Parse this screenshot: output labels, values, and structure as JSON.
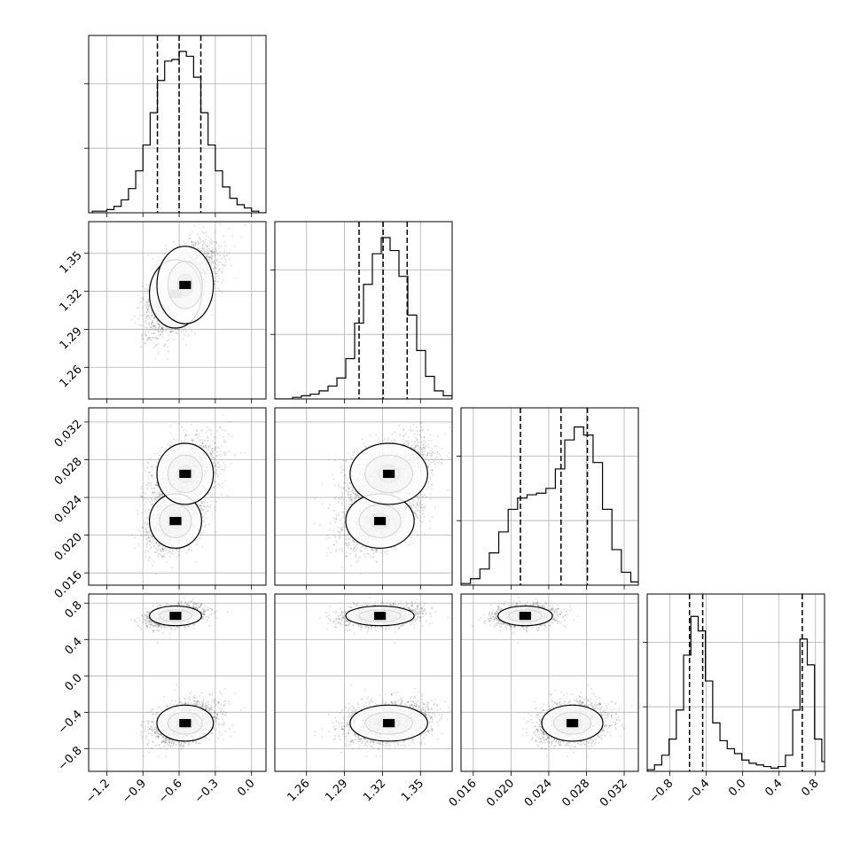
{
  "chart_data": {
    "type": "corner",
    "parameters": [
      {
        "range": [
          -1.35,
          0.12
        ],
        "ticks": [
          -1.2,
          -0.9,
          -0.6,
          -0.3,
          0.0
        ],
        "tick_labels": [
          "−1.2",
          "−0.9",
          "−0.6",
          "−0.3",
          "0.0"
        ],
        "quantiles": [
          -0.78,
          -0.6,
          -0.42
        ],
        "hist": {
          "bins": [
            -1.32,
            -1.26,
            -1.2,
            -1.14,
            -1.08,
            -1.02,
            -0.96,
            -0.9,
            -0.84,
            -0.78,
            -0.72,
            -0.66,
            -0.6,
            -0.54,
            -0.48,
            -0.42,
            -0.36,
            -0.3,
            -0.24,
            -0.18,
            -0.12,
            -0.06,
            0.0,
            0.06
          ],
          "counts": [
            0.01,
            0.01,
            0.02,
            0.04,
            0.08,
            0.15,
            0.26,
            0.42,
            0.62,
            0.82,
            0.94,
            0.95,
            1.0,
            0.97,
            0.84,
            0.62,
            0.42,
            0.26,
            0.16,
            0.09,
            0.05,
            0.03,
            0.01,
            0.0
          ]
        }
      },
      {
        "range": [
          1.235,
          1.375
        ],
        "ticks": [
          1.26,
          1.29,
          1.32,
          1.35
        ],
        "tick_labels": [
          "1.26",
          "1.29",
          "1.32",
          "1.35"
        ],
        "quantiles": [
          1.3015,
          1.3205,
          1.3395
        ],
        "hist": {
          "bins": [
            1.235,
            1.242,
            1.249,
            1.256,
            1.263,
            1.27,
            1.277,
            1.284,
            1.291,
            1.298,
            1.305,
            1.312,
            1.319,
            1.326,
            1.333,
            1.34,
            1.347,
            1.354,
            1.361,
            1.368
          ],
          "counts": [
            0.0,
            0.0,
            0.01,
            0.02,
            0.03,
            0.05,
            0.08,
            0.13,
            0.25,
            0.47,
            0.71,
            0.9,
            1.0,
            0.92,
            0.76,
            0.52,
            0.3,
            0.14,
            0.05,
            0.02
          ]
        }
      },
      {
        "range": [
          0.0147,
          0.0335
        ],
        "ticks": [
          0.016,
          0.02,
          0.024,
          0.028,
          0.032
        ],
        "tick_labels": [
          "0.016",
          "0.020",
          "0.024",
          "0.028",
          "0.032"
        ],
        "quantiles": [
          0.021,
          0.0253,
          0.0281
        ],
        "hist": {
          "bins": [
            0.0147,
            0.0157,
            0.0167,
            0.0177,
            0.0187,
            0.0197,
            0.0207,
            0.0217,
            0.0227,
            0.0237,
            0.0247,
            0.0257,
            0.0267,
            0.0277,
            0.0287,
            0.0297,
            0.0307,
            0.0317,
            0.0327
          ],
          "counts": [
            0.01,
            0.04,
            0.1,
            0.2,
            0.33,
            0.47,
            0.54,
            0.56,
            0.57,
            0.6,
            0.72,
            0.9,
            0.98,
            0.93,
            0.76,
            0.47,
            0.22,
            0.08,
            0.02
          ]
        }
      },
      {
        "range": [
          -1.05,
          0.9
        ],
        "ticks": [
          -0.8,
          -0.4,
          0.0,
          0.4,
          0.8
        ],
        "tick_labels": [
          "−0.8",
          "−0.4",
          "0.0",
          "0.4",
          "0.8"
        ],
        "quantiles": [
          -0.585,
          -0.44,
          0.655
        ],
        "hist": {
          "bins": [
            -1.05,
            -0.97,
            -0.89,
            -0.81,
            -0.73,
            -0.65,
            -0.57,
            -0.49,
            -0.41,
            -0.33,
            -0.25,
            -0.17,
            -0.09,
            -0.01,
            0.07,
            0.15,
            0.23,
            0.31,
            0.39,
            0.47,
            0.55,
            0.63,
            0.71,
            0.79,
            0.87
          ],
          "counts": [
            0.01,
            0.04,
            0.1,
            0.2,
            0.38,
            0.72,
            0.96,
            0.87,
            0.56,
            0.3,
            0.19,
            0.14,
            0.11,
            0.07,
            0.05,
            0.04,
            0.03,
            0.02,
            0.03,
            0.1,
            0.38,
            0.82,
            0.66,
            0.2,
            0.06
          ]
        }
      }
    ],
    "modes": [
      {
        "w": 0.45,
        "m": [
          -0.63,
          1.318,
          0.0215,
          0.66
        ],
        "s": [
          0.12,
          0.015,
          0.0016,
          0.06
        ]
      },
      {
        "w": 0.55,
        "m": [
          -0.55,
          1.325,
          0.0265,
          -0.52
        ],
        "s": [
          0.13,
          0.017,
          0.0018,
          0.11
        ]
      }
    ],
    "grid": true,
    "hist_style": "step",
    "quantile_style": "dashed"
  }
}
